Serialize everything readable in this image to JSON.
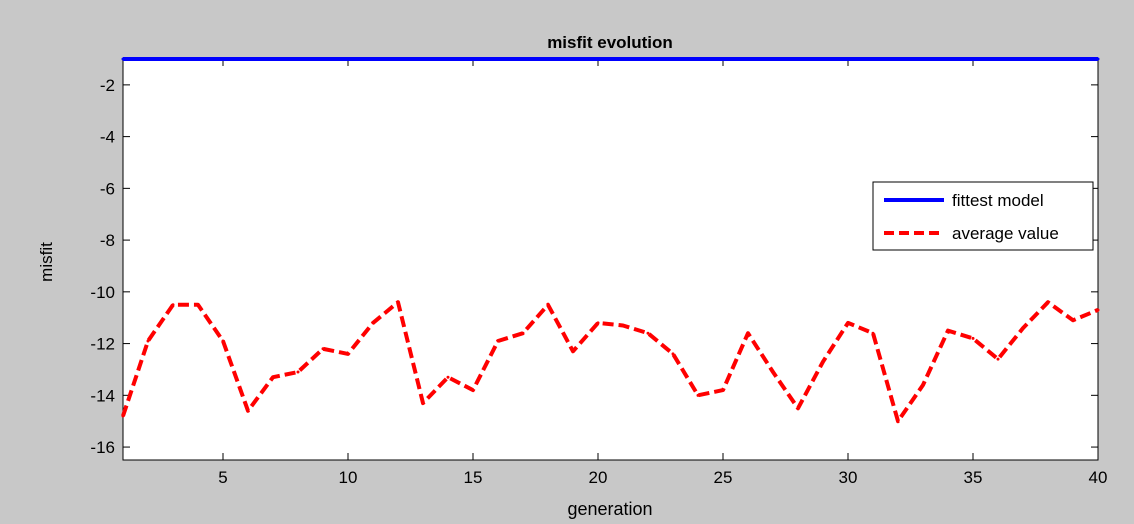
{
  "chart_data": {
    "type": "line",
    "title": "misfit evolution",
    "xlabel": "generation",
    "ylabel": "misfit",
    "xlim": [
      1,
      40
    ],
    "ylim": [
      -16.5,
      -1
    ],
    "xticks": [
      5,
      10,
      15,
      20,
      25,
      30,
      35,
      40
    ],
    "yticks": [
      -2,
      -4,
      -6,
      -8,
      -10,
      -12,
      -14,
      -16
    ],
    "grid": false,
    "legend_position": "right",
    "series": [
      {
        "name": "fittest model",
        "color": "#0000ff",
        "style": "solid",
        "x": [
          1,
          2,
          3,
          4,
          5,
          6,
          7,
          8,
          9,
          10,
          11,
          12,
          13,
          14,
          15,
          16,
          17,
          18,
          19,
          20,
          21,
          22,
          23,
          24,
          25,
          26,
          27,
          28,
          29,
          30,
          31,
          32,
          33,
          34,
          35,
          36,
          37,
          38,
          39,
          40
        ],
        "y": [
          -1.0,
          -1.0,
          -1.0,
          -1.0,
          -1.0,
          -1.0,
          -1.0,
          -1.0,
          -1.0,
          -1.0,
          -1.0,
          -1.0,
          -1.0,
          -1.0,
          -1.0,
          -1.0,
          -1.0,
          -1.0,
          -1.0,
          -1.0,
          -1.0,
          -1.0,
          -1.0,
          -1.0,
          -1.0,
          -1.0,
          -1.0,
          -1.0,
          -1.0,
          -1.0,
          -1.0,
          -1.0,
          -1.0,
          -1.0,
          -1.0,
          -1.0,
          -1.0,
          -1.0,
          -1.0,
          -1.0
        ]
      },
      {
        "name": "average value",
        "color": "#ff0000",
        "style": "dashed",
        "x": [
          1,
          2,
          3,
          4,
          5,
          6,
          7,
          8,
          9,
          10,
          11,
          12,
          13,
          14,
          15,
          16,
          17,
          18,
          19,
          20,
          21,
          22,
          23,
          24,
          25,
          26,
          27,
          28,
          29,
          30,
          31,
          32,
          33,
          34,
          35,
          36,
          37,
          38,
          39,
          40
        ],
        "y": [
          -14.8,
          -11.9,
          -10.5,
          -10.5,
          -11.9,
          -14.6,
          -13.3,
          -13.1,
          -12.2,
          -12.4,
          -11.2,
          -10.4,
          -14.3,
          -13.3,
          -13.8,
          -11.9,
          -11.6,
          -10.5,
          -12.3,
          -11.2,
          -11.3,
          -11.6,
          -12.4,
          -14.0,
          -13.8,
          -11.6,
          -13.1,
          -14.5,
          -12.7,
          -11.2,
          -11.6,
          -15.0,
          -13.6,
          -11.5,
          -11.8,
          -12.6,
          -11.4,
          -10.4,
          -11.1,
          -10.7
        ]
      }
    ]
  }
}
